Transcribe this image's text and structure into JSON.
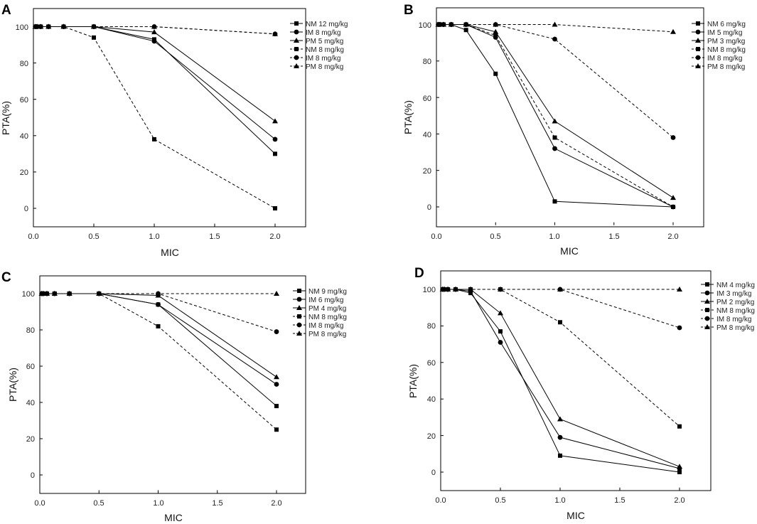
{
  "chart_data": [
    {
      "panel": "A",
      "type": "line",
      "xlabel": "MIC",
      "ylabel": "PTA(%)",
      "xlim": [
        0,
        2.25
      ],
      "ylim": [
        -10,
        110
      ],
      "xticks": [
        "0.0",
        "0.5",
        "1.0",
        "1.5",
        "2.0"
      ],
      "yticks": [
        "0",
        "20",
        "40",
        "60",
        "80",
        "100"
      ],
      "xtick_values": [
        0,
        0.5,
        1.0,
        1.5,
        2.0
      ],
      "ytick_values": [
        0,
        20,
        40,
        60,
        80,
        100
      ],
      "x": [
        0.016,
        0.03,
        0.06,
        0.125,
        0.25,
        0.5,
        1.0,
        2.0
      ],
      "legend_position": "top-right",
      "series": [
        {
          "name": "NM 12 mg/kg",
          "marker": "square",
          "dashed": false,
          "values": [
            100,
            100,
            100,
            100,
            100,
            100,
            93,
            30
          ]
        },
        {
          "name": "IM 8 mg/kg",
          "marker": "circle",
          "dashed": false,
          "values": [
            100,
            100,
            100,
            100,
            100,
            100,
            92,
            38
          ]
        },
        {
          "name": "PM 5 mg/kg",
          "marker": "triangle",
          "dashed": false,
          "values": [
            100,
            100,
            100,
            100,
            100,
            100,
            97,
            48
          ]
        },
        {
          "name": "NM 8 mg/kg",
          "marker": "square",
          "dashed": true,
          "values": [
            100,
            100,
            100,
            100,
            100,
            94,
            38,
            0
          ]
        },
        {
          "name": "IM 8 mg/kg",
          "marker": "circle",
          "dashed": true,
          "values": [
            100,
            100,
            100,
            100,
            100,
            100,
            100,
            96
          ]
        },
        {
          "name": "PM 8 mg/kg",
          "marker": "triangle",
          "dashed": true,
          "values": [
            100,
            100,
            100,
            100,
            100,
            100,
            100,
            96
          ]
        }
      ]
    },
    {
      "panel": "B",
      "type": "line",
      "xlabel": "MIC",
      "ylabel": "PTA(%)",
      "xlim": [
        0,
        2.25
      ],
      "ylim": [
        -10,
        110
      ],
      "xticks": [
        "0.0",
        "0.5",
        "1.0",
        "1.5",
        "2.0"
      ],
      "yticks": [
        "0",
        "20",
        "40",
        "60",
        "80",
        "100"
      ],
      "xtick_values": [
        0,
        0.5,
        1.0,
        1.5,
        2.0
      ],
      "ytick_values": [
        0,
        20,
        40,
        60,
        80,
        100
      ],
      "x": [
        0.016,
        0.03,
        0.06,
        0.125,
        0.25,
        0.5,
        1.0,
        2.0
      ],
      "legend_position": "top-right",
      "series": [
        {
          "name": "NM 6 mg/kg",
          "marker": "square",
          "dashed": false,
          "values": [
            100,
            100,
            100,
            100,
            97,
            73,
            3,
            0
          ]
        },
        {
          "name": "IM 5 mg/kg",
          "marker": "circle",
          "dashed": false,
          "values": [
            100,
            100,
            100,
            100,
            100,
            93,
            32,
            0
          ]
        },
        {
          "name": "PM 3 mg/kg",
          "marker": "triangle",
          "dashed": false,
          "values": [
            100,
            100,
            100,
            100,
            100,
            96,
            47,
            5
          ]
        },
        {
          "name": "NM 8 mg/kg",
          "marker": "square",
          "dashed": true,
          "values": [
            100,
            100,
            100,
            100,
            100,
            94,
            38,
            0
          ]
        },
        {
          "name": "IM 8 mg/kg",
          "marker": "circle",
          "dashed": true,
          "values": [
            100,
            100,
            100,
            100,
            100,
            100,
            92,
            38
          ]
        },
        {
          "name": "PM 8 mg/kg",
          "marker": "triangle",
          "dashed": true,
          "values": [
            100,
            100,
            100,
            100,
            100,
            100,
            100,
            96
          ]
        }
      ]
    },
    {
      "panel": "C",
      "type": "line",
      "xlabel": "MIC",
      "ylabel": "PTA(%)",
      "xlim": [
        0,
        2.25
      ],
      "ylim": [
        -10,
        110
      ],
      "xticks": [
        "0.0",
        "0.5",
        "1.0",
        "1.5",
        "2.0"
      ],
      "yticks": [
        "0",
        "20",
        "40",
        "60",
        "80",
        "100"
      ],
      "xtick_values": [
        0,
        0.5,
        1.0,
        1.5,
        2.0
      ],
      "ytick_values": [
        0,
        20,
        40,
        60,
        80,
        100
      ],
      "x": [
        0.016,
        0.03,
        0.06,
        0.125,
        0.25,
        0.5,
        1.0,
        2.0
      ],
      "legend_position": "top-right",
      "series": [
        {
          "name": "NM 9 mg/kg",
          "marker": "square",
          "dashed": false,
          "values": [
            100,
            100,
            100,
            100,
            100,
            100,
            94,
            38
          ]
        },
        {
          "name": "IM 6 mg/kg",
          "marker": "circle",
          "dashed": false,
          "values": [
            100,
            100,
            100,
            100,
            100,
            100,
            94,
            50
          ]
        },
        {
          "name": "PM 4 mg/kg",
          "marker": "triangle",
          "dashed": false,
          "values": [
            100,
            100,
            100,
            100,
            100,
            100,
            99,
            54
          ]
        },
        {
          "name": "NM 8 mg/kg",
          "marker": "square",
          "dashed": true,
          "values": [
            100,
            100,
            100,
            100,
            100,
            100,
            82,
            25
          ]
        },
        {
          "name": "IM 8 mg/kg",
          "marker": "circle",
          "dashed": true,
          "values": [
            100,
            100,
            100,
            100,
            100,
            100,
            100,
            79
          ]
        },
        {
          "name": "PM 8 mg/kg",
          "marker": "triangle",
          "dashed": true,
          "values": [
            100,
            100,
            100,
            100,
            100,
            100,
            100,
            100
          ]
        }
      ]
    },
    {
      "panel": "D",
      "type": "line",
      "xlabel": "MIC",
      "ylabel": "PTA(%)",
      "xlim": [
        0,
        2.25
      ],
      "ylim": [
        -10,
        110
      ],
      "xticks": [
        "0.0",
        "0.5",
        "1.0",
        "1.5",
        "2.0"
      ],
      "yticks": [
        "0",
        "20",
        "40",
        "60",
        "80",
        "100"
      ],
      "xtick_values": [
        0,
        0.5,
        1.0,
        1.5,
        2.0
      ],
      "ytick_values": [
        0,
        20,
        40,
        60,
        80,
        100
      ],
      "x": [
        0.016,
        0.03,
        0.06,
        0.125,
        0.25,
        0.5,
        1.0,
        2.0
      ],
      "legend_position": "top-right",
      "series": [
        {
          "name": "NM 4 mg/kg",
          "marker": "square",
          "dashed": false,
          "values": [
            100,
            100,
            100,
            100,
            98,
            77,
            9,
            0
          ]
        },
        {
          "name": "IM 3 mg/kg",
          "marker": "circle",
          "dashed": false,
          "values": [
            100,
            100,
            100,
            100,
            99,
            71,
            19,
            2
          ]
        },
        {
          "name": "PM 2 mg/kg",
          "marker": "triangle",
          "dashed": false,
          "values": [
            100,
            100,
            100,
            100,
            100,
            87,
            29,
            3
          ]
        },
        {
          "name": "NM 8 mg/kg",
          "marker": "square",
          "dashed": true,
          "values": [
            100,
            100,
            100,
            100,
            100,
            100,
            82,
            25
          ]
        },
        {
          "name": "IM 8 mg/kg",
          "marker": "circle",
          "dashed": true,
          "values": [
            100,
            100,
            100,
            100,
            100,
            100,
            100,
            79
          ]
        },
        {
          "name": "PM 8 mg/kg",
          "marker": "triangle",
          "dashed": true,
          "values": [
            100,
            100,
            100,
            100,
            100,
            100,
            100,
            100
          ]
        }
      ]
    }
  ]
}
